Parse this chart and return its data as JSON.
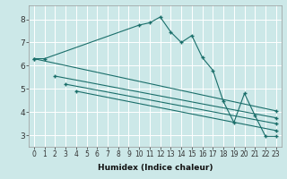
{
  "xlabel": "Humidex (Indice chaleur)",
  "xlim": [
    -0.5,
    23.5
  ],
  "ylim": [
    2.5,
    8.6
  ],
  "xticks": [
    0,
    1,
    2,
    3,
    4,
    5,
    6,
    7,
    8,
    9,
    10,
    11,
    12,
    13,
    14,
    15,
    16,
    17,
    18,
    19,
    20,
    21,
    22,
    23
  ],
  "yticks": [
    3,
    4,
    5,
    6,
    7,
    8
  ],
  "bg_color": "#cce8e8",
  "grid_color": "#ffffff",
  "line_color": "#1a6e6a",
  "series": [
    {
      "x": [
        0,
        1,
        10,
        11,
        12,
        13,
        14,
        15,
        16,
        17,
        18,
        19,
        20,
        21,
        22,
        23
      ],
      "y": [
        6.3,
        6.3,
        7.75,
        7.85,
        8.1,
        7.45,
        7.0,
        7.3,
        6.35,
        5.8,
        4.45,
        3.55,
        4.8,
        3.85,
        2.95,
        2.95
      ]
    },
    {
      "x": [
        0,
        23
      ],
      "y": [
        6.3,
        4.05
      ]
    },
    {
      "x": [
        2,
        23
      ],
      "y": [
        5.55,
        3.75
      ]
    },
    {
      "x": [
        3,
        23
      ],
      "y": [
        5.2,
        3.5
      ]
    },
    {
      "x": [
        4,
        23
      ],
      "y": [
        4.9,
        3.2
      ]
    }
  ],
  "tick_fontsize": 5.5,
  "xlabel_fontsize": 6.5,
  "marker_size": 2.0,
  "linewidth": 0.8
}
